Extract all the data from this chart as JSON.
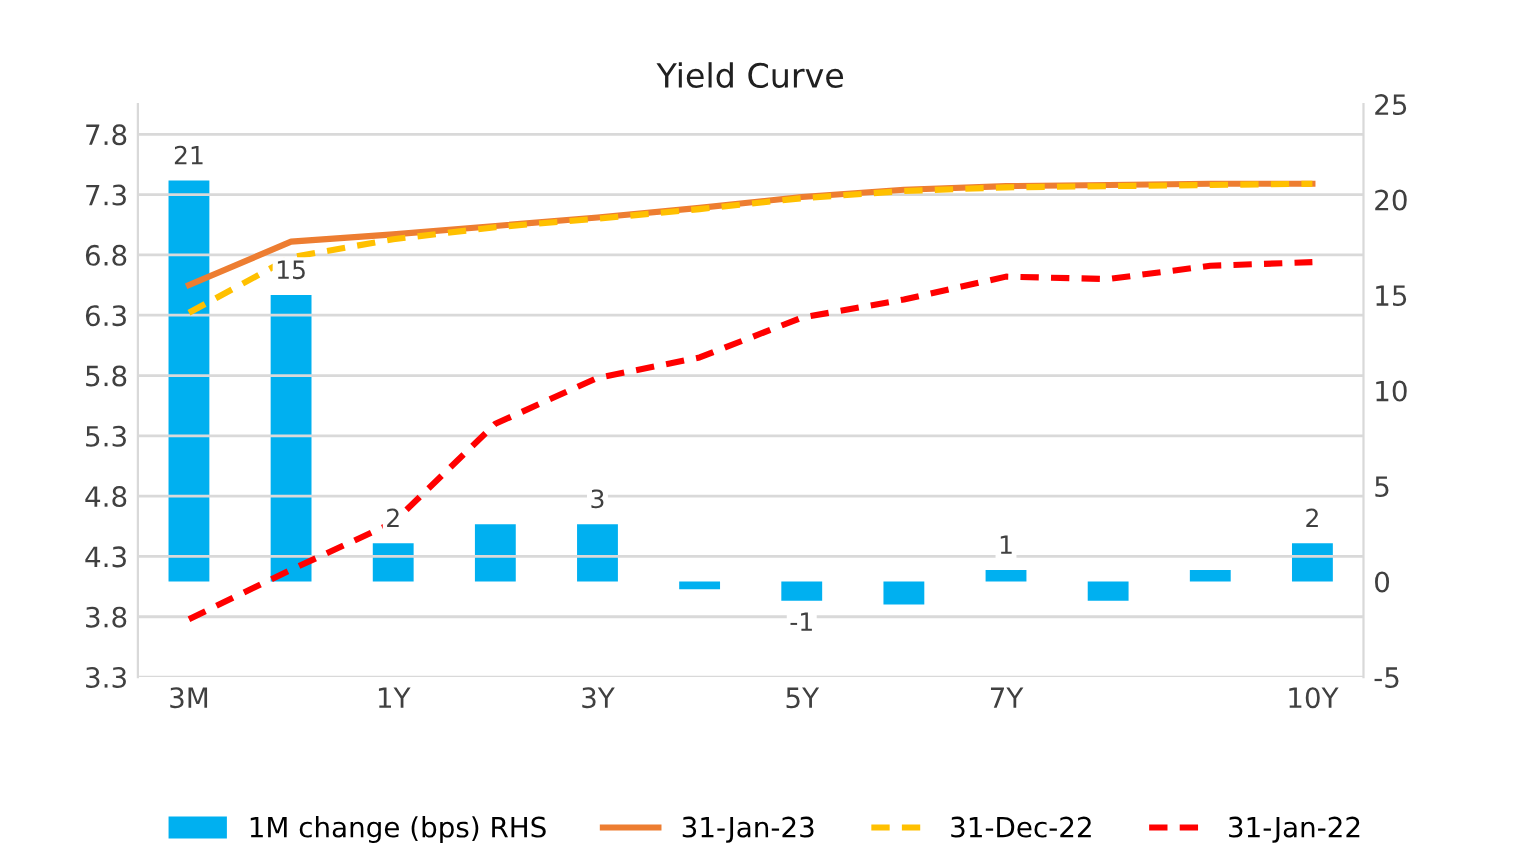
{
  "chart_data": {
    "type": "line",
    "title": "Yield Curve",
    "categories": [
      "3M",
      null,
      "1Y",
      null,
      "3Y",
      null,
      "5Y",
      null,
      "7Y",
      null,
      null,
      "10Y"
    ],
    "series": [
      {
        "name": "1M change (bps) RHS",
        "type": "bar",
        "axis": "y2",
        "color": "#00b0f0",
        "values": [
          21,
          15,
          2,
          3,
          3,
          -0.4,
          -1,
          -1.2,
          0.6,
          -1,
          0.6,
          2
        ],
        "value_labels": [
          "21",
          "15",
          "2",
          null,
          "3",
          null,
          "-1",
          null,
          "1",
          null,
          null,
          "2"
        ]
      },
      {
        "name": "31-Jan-23",
        "color": "#ed7d31",
        "line_style": "solid",
        "values": [
          6.55,
          6.91,
          6.97,
          7.04,
          7.11,
          7.19,
          7.28,
          7.34,
          7.37,
          7.38,
          7.39,
          7.39
        ]
      },
      {
        "name": "31-Dec-22",
        "color": "#ffc000",
        "line_style": "dashed",
        "values": [
          6.32,
          6.78,
          6.93,
          7.03,
          7.1,
          7.18,
          7.27,
          7.33,
          7.36,
          7.37,
          7.38,
          7.39
        ]
      },
      {
        "name": "31-Jan-22",
        "color": "#ff0000",
        "line_style": "dashed",
        "values": [
          3.78,
          4.19,
          4.58,
          5.4,
          5.78,
          5.95,
          6.28,
          6.43,
          6.62,
          6.6,
          6.71,
          6.74
        ]
      }
    ],
    "ylim": [
      3.3,
      8.05
    ],
    "yticks": [
      3.3,
      3.8,
      4.3,
      4.8,
      5.3,
      5.8,
      6.3,
      6.8,
      7.3,
      7.8
    ],
    "y2lim": [
      -5,
      25
    ],
    "y2ticks": [
      -5,
      0,
      5,
      10,
      15,
      20,
      25
    ],
    "grid": "y",
    "legend": "bottom"
  }
}
